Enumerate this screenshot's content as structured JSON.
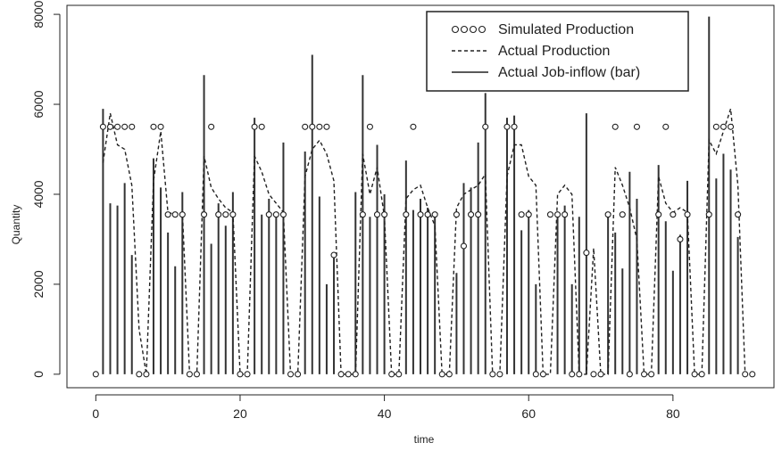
{
  "chart_data": {
    "type": "line",
    "title": "",
    "xlabel": "time",
    "ylabel": "Quantity",
    "xlim": [
      -4,
      94
    ],
    "ylim": [
      -300,
      8200
    ],
    "x_ticks": [
      0,
      20,
      40,
      60,
      80
    ],
    "y_ticks": [
      0,
      2000,
      4000,
      6000,
      8000
    ],
    "grid": false,
    "legend_position": "top-right",
    "series": [
      {
        "name": "Simulated Production",
        "style": "points",
        "x": [
          0,
          1,
          2,
          3,
          4,
          5,
          6,
          7,
          8,
          9,
          10,
          11,
          12,
          13,
          14,
          15,
          16,
          17,
          18,
          19,
          20,
          21,
          22,
          23,
          24,
          25,
          26,
          27,
          28,
          29,
          30,
          31,
          32,
          33,
          34,
          35,
          36,
          37,
          38,
          39,
          40,
          41,
          42,
          43,
          44,
          45,
          46,
          47,
          48,
          49,
          50,
          51,
          52,
          53,
          54,
          55,
          56,
          57,
          58,
          59,
          60,
          61,
          62,
          63,
          64,
          65,
          66,
          67,
          68,
          69,
          70,
          71,
          72,
          73,
          74,
          75,
          76,
          77,
          78,
          79,
          80,
          81,
          82,
          83,
          84,
          85,
          86,
          87,
          88,
          89,
          90,
          91
        ],
        "values": [
          0,
          5500,
          5500,
          5500,
          5500,
          5500,
          0,
          0,
          5500,
          5500,
          3550,
          3550,
          3550,
          0,
          0,
          3550,
          5500,
          3550,
          3550,
          3550,
          0,
          0,
          5500,
          5500,
          3550,
          3550,
          3550,
          0,
          0,
          5500,
          5500,
          5500,
          5500,
          2650,
          0,
          0,
          0,
          3550,
          5500,
          3550,
          3550,
          0,
          0,
          3550,
          5500,
          3550,
          3550,
          3550,
          0,
          0,
          3550,
          2850,
          3550,
          3550,
          5500,
          0,
          0,
          5500,
          5500,
          3550,
          3550,
          0,
          0,
          3550,
          3550,
          3550,
          0,
          0,
          2700,
          0,
          0,
          3550,
          5500,
          3550,
          0,
          5500,
          0,
          0,
          3550,
          5500,
          3550,
          3000,
          3550,
          0,
          0,
          3550,
          5500,
          5500,
          5500,
          3550,
          0,
          0
        ]
      },
      {
        "name": "Actual Production",
        "style": "dashed",
        "x": [
          1,
          2,
          3,
          4,
          5,
          6,
          7,
          8,
          9,
          10,
          11,
          12,
          13,
          14,
          15,
          16,
          17,
          18,
          19,
          20,
          21,
          22,
          23,
          24,
          25,
          26,
          27,
          28,
          29,
          30,
          31,
          32,
          33,
          34,
          35,
          36,
          37,
          38,
          39,
          40,
          41,
          42,
          43,
          44,
          45,
          46,
          47,
          48,
          49,
          50,
          51,
          52,
          53,
          54,
          55,
          56,
          57,
          58,
          59,
          60,
          61,
          62,
          63,
          64,
          65,
          66,
          67,
          68,
          69,
          70,
          71,
          72,
          73,
          74,
          75,
          76,
          77,
          78,
          79,
          80,
          81,
          82,
          83,
          84,
          85,
          86,
          87,
          88,
          89,
          90,
          91
        ],
        "values": [
          4700,
          5800,
          5100,
          5000,
          4200,
          1000,
          0,
          4300,
          5400,
          3600,
          3550,
          3600,
          0,
          0,
          4850,
          4150,
          3900,
          3700,
          3600,
          0,
          0,
          4850,
          4500,
          4000,
          3800,
          3600,
          0,
          0,
          4400,
          5000,
          5200,
          4900,
          4300,
          0,
          0,
          0,
          4900,
          4000,
          4600,
          3500,
          0,
          0,
          3900,
          4100,
          4200,
          3700,
          3300,
          0,
          0,
          3700,
          4000,
          4100,
          4200,
          4450,
          0,
          0,
          4400,
          5100,
          5100,
          4400,
          4200,
          0,
          0,
          4000,
          4200,
          4000,
          0,
          0,
          2800,
          0,
          0,
          4600,
          4200,
          3700,
          3000,
          0,
          0,
          4400,
          3800,
          3600,
          3700,
          3600,
          0,
          0,
          5200,
          4900,
          5400,
          5900,
          4200,
          0,
          0
        ]
      },
      {
        "name": "Actual Job-inflow (bar)",
        "style": "bars",
        "x": [
          1,
          2,
          3,
          4,
          5,
          8,
          9,
          10,
          11,
          12,
          15,
          16,
          17,
          18,
          19,
          22,
          23,
          24,
          25,
          26,
          29,
          30,
          31,
          32,
          33,
          36,
          37,
          38,
          39,
          40,
          43,
          44,
          45,
          46,
          47,
          50,
          51,
          52,
          53,
          54,
          57,
          58,
          59,
          60,
          61,
          64,
          65,
          66,
          67,
          68,
          71,
          72,
          73,
          74,
          75,
          78,
          79,
          80,
          81,
          82,
          85,
          86,
          87,
          88,
          89
        ],
        "values": [
          5900,
          3800,
          3750,
          4250,
          2650,
          4800,
          4150,
          3150,
          2400,
          4050,
          6650,
          2900,
          3800,
          3300,
          4050,
          5700,
          3550,
          3900,
          3600,
          5150,
          4950,
          7100,
          3950,
          2000,
          2600,
          4050,
          6650,
          3500,
          5100,
          4000,
          4750,
          3650,
          3900,
          3700,
          3500,
          2250,
          4250,
          4150,
          5150,
          6250,
          5700,
          5750,
          3200,
          3650,
          2000,
          3600,
          3750,
          2000,
          3500,
          5800,
          3550,
          3150,
          2350,
          4500,
          3900,
          4650,
          3400,
          2300,
          3100,
          4300,
          7950,
          4350,
          4900,
          4550,
          3050
        ]
      }
    ]
  }
}
